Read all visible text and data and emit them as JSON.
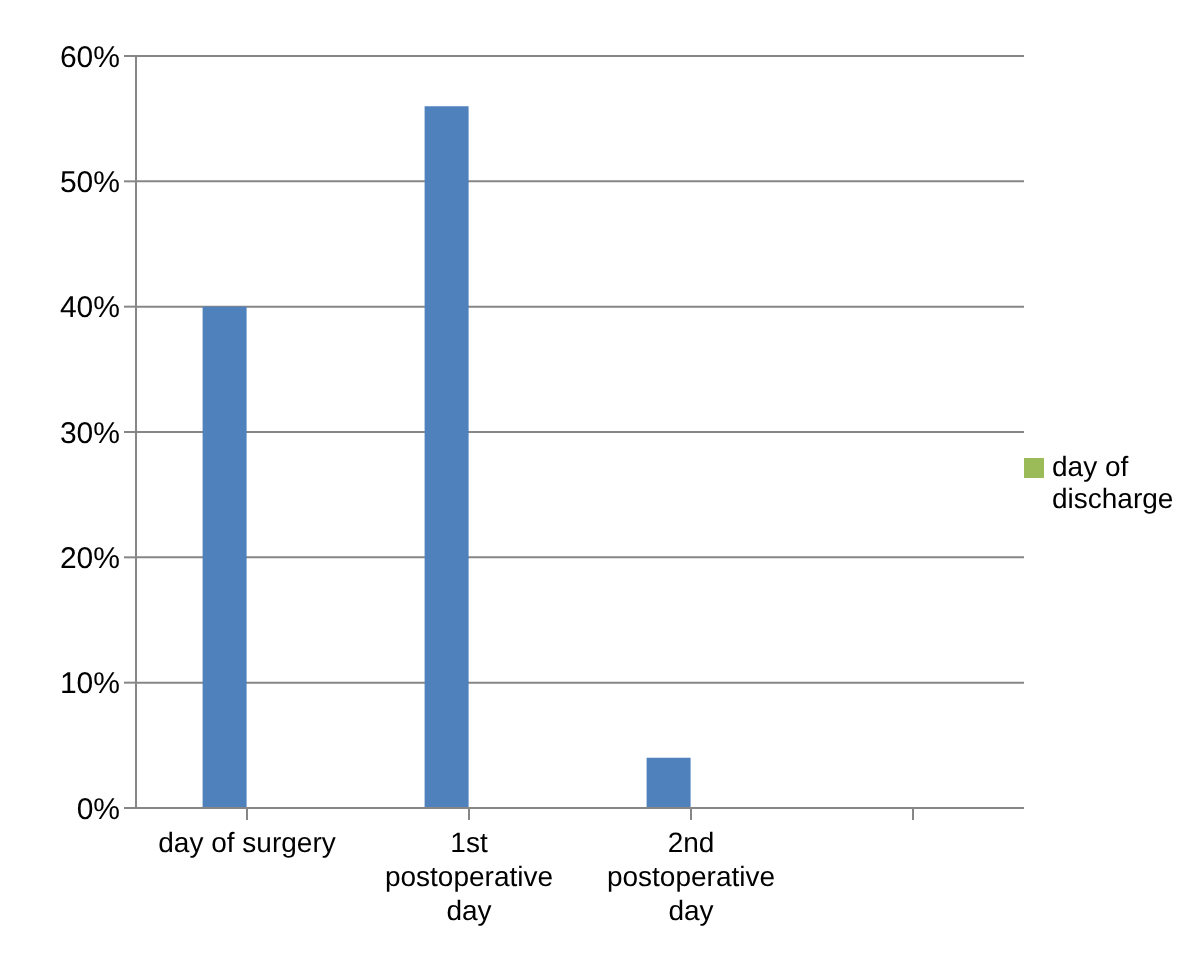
{
  "chart_data": {
    "type": "bar",
    "categories": [
      "day of surgery",
      "1st postoperative day",
      "2nd postoperative day",
      null
    ],
    "series": [
      {
        "color": "#4f81bd",
        "values": [
          40,
          56,
          4,
          null
        ]
      },
      {
        "name": "day of discharge",
        "color": "#9bbb59",
        "values": [
          null,
          null,
          null,
          null
        ]
      }
    ],
    "ylim": [
      0,
      60
    ],
    "yticks": [
      {
        "value": 0,
        "label": "0%"
      },
      {
        "value": 10,
        "label": "10%"
      },
      {
        "value": 20,
        "label": "20%"
      },
      {
        "value": 30,
        "label": "30%"
      },
      {
        "value": 40,
        "label": "40%"
      },
      {
        "value": 50,
        "label": "50%"
      },
      {
        "value": 60,
        "label": "60%"
      }
    ],
    "grid": "y",
    "legend": "right"
  }
}
